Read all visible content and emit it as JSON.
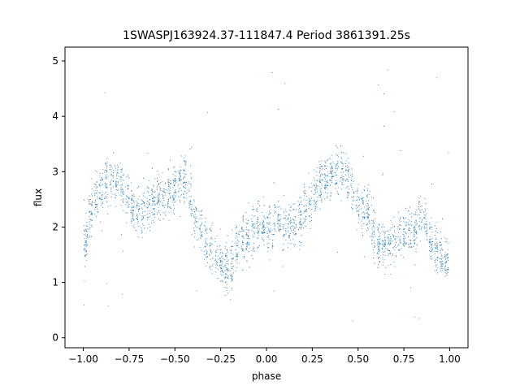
{
  "chart_data": {
    "type": "scatter",
    "title": "1SWASPJ163924.37-111847.4 Period 3861391.25s",
    "xlabel": "phase",
    "ylabel": "flux",
    "xlim": [
      -1.1,
      1.1
    ],
    "ylim": [
      -0.18,
      5.25
    ],
    "xticks": [
      -1.0,
      -0.75,
      -0.5,
      -0.25,
      0.0,
      0.25,
      0.5,
      0.75,
      1.0
    ],
    "xtick_labels": [
      "−1.00",
      "−0.75",
      "−0.50",
      "−0.25",
      "0.00",
      "0.25",
      "0.50",
      "0.75",
      "1.00"
    ],
    "yticks": [
      0,
      1,
      2,
      3,
      4,
      5
    ],
    "ytick_labels": [
      "0",
      "1",
      "2",
      "3",
      "4",
      "5"
    ],
    "grid": false,
    "point_color": "#1f77b4",
    "series": [
      {
        "profile_x": [
          -1.0,
          -0.95,
          -0.9,
          -0.85,
          -0.8,
          -0.75,
          -0.7,
          -0.65,
          -0.6,
          -0.55,
          -0.5,
          -0.45,
          -0.4,
          -0.35,
          -0.3,
          -0.25,
          -0.2,
          -0.15,
          -0.1,
          -0.05,
          0.0,
          0.05,
          0.1,
          0.15,
          0.2,
          0.25,
          0.3,
          0.35,
          0.4,
          0.45,
          0.5,
          0.55,
          0.6,
          0.65,
          0.7,
          0.75,
          0.8,
          0.85,
          0.9,
          0.95,
          1.0
        ],
        "profile_y": [
          1.5,
          2.3,
          2.3,
          2.6,
          2.7,
          2.6,
          2.6,
          2.7,
          2.7,
          2.5,
          2.4,
          2.6,
          2.0,
          1.9,
          1.8,
          1.7,
          1.5,
          1.9,
          1.6,
          1.7,
          1.6,
          2.0,
          2.2,
          2.4,
          2.6,
          2.7,
          2.7,
          2.6,
          2.7,
          2.6,
          2.4,
          2.6,
          2.1,
          1.9,
          1.8,
          1.7,
          1.6,
          1.9,
          1.6,
          1.7,
          1.7
        ],
        "spread": 0.85
      }
    ]
  }
}
